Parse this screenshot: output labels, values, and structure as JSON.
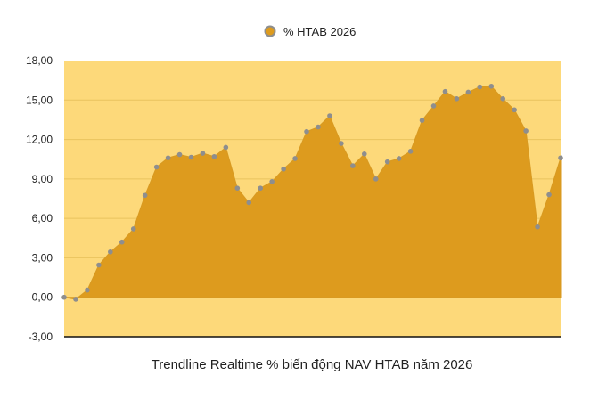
{
  "chart_data": {
    "type": "area",
    "legend_position": "top-center",
    "series": [
      {
        "name": "% HTAB 2026",
        "values": [
          0.0,
          -0.15,
          0.55,
          2.45,
          3.45,
          4.2,
          5.2,
          7.75,
          9.9,
          10.6,
          10.85,
          10.65,
          10.95,
          10.7,
          11.4,
          8.3,
          7.2,
          8.3,
          8.8,
          9.75,
          10.55,
          12.6,
          12.95,
          13.8,
          11.7,
          10.0,
          10.9,
          9.0,
          10.3,
          10.55,
          11.1,
          13.45,
          14.55,
          15.65,
          15.1,
          15.6,
          16.0,
          16.05,
          15.1,
          14.25,
          12.65,
          5.35,
          7.8,
          10.6
        ]
      }
    ],
    "ylim": [
      -3,
      18
    ],
    "yticks": [
      "-3,00",
      "0,00",
      "3,00",
      "6,00",
      "9,00",
      "12,00",
      "15,00",
      "18,00"
    ],
    "xlabel": "Trendline Realtime % biến động NAV HTAB năm 2026",
    "grid": true,
    "colors": {
      "plot_background": "#FDD97A",
      "area_fill": "#DD9B1E",
      "area_line": "#D89A22",
      "marker": "#8E8E8E",
      "gridline": "#E9C35E",
      "axis_line": "#111111"
    }
  }
}
